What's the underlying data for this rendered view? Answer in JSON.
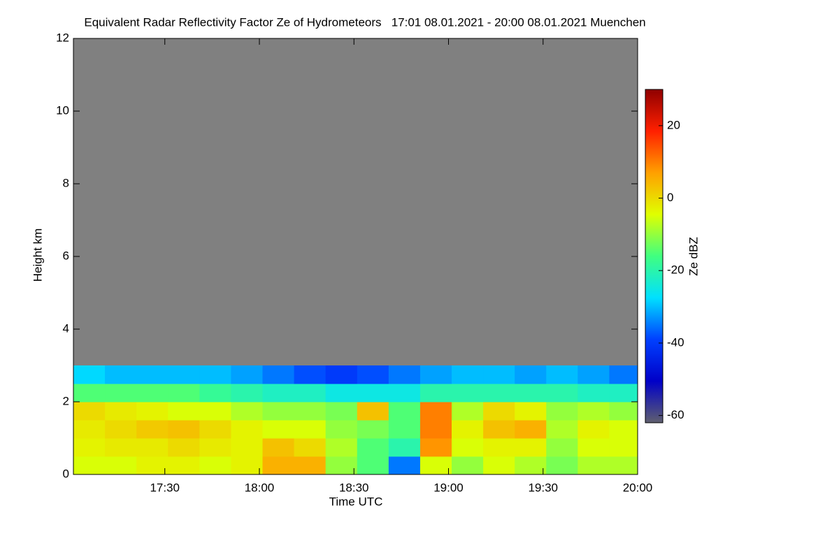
{
  "chart_data": {
    "type": "heatmap",
    "title": "Equivalent Radar Reflectivity Factor Ze of Hydrometeors   17:01 08.01.2021 - 20:00 08.01.2021 Muenchen",
    "xlabel": "Time UTC",
    "ylabel": "Height km",
    "colorbar_label": "Ze dBZ",
    "x": [
      1021,
      1031,
      1041,
      1051,
      1061,
      1071,
      1081,
      1091,
      1101,
      1111,
      1121,
      1131,
      1141,
      1151,
      1161,
      1171,
      1181,
      1191
    ],
    "y": [
      0,
      0.5,
      1,
      1.5,
      2,
      2.5
    ],
    "z": [
      [
        -5,
        -5,
        -3,
        -3,
        -5,
        -3,
        5,
        5,
        -10,
        -15,
        -35,
        -5,
        -10,
        -5,
        -8,
        -12,
        -8,
        -8
      ],
      [
        -3,
        -2,
        -2,
        0,
        -2,
        -3,
        3,
        0,
        -8,
        -15,
        -20,
        8,
        -5,
        -3,
        -3,
        -10,
        -5,
        -5
      ],
      [
        -2,
        0,
        2,
        3,
        0,
        -3,
        -5,
        -5,
        -10,
        -12,
        -15,
        10,
        -3,
        3,
        5,
        -8,
        -3,
        -5
      ],
      [
        0,
        -2,
        -3,
        -5,
        -5,
        -8,
        -10,
        -10,
        -12,
        3,
        -15,
        10,
        -8,
        0,
        -3,
        -10,
        -8,
        -10
      ],
      [
        -15,
        -15,
        -15,
        -15,
        -18,
        -20,
        -22,
        -22,
        -25,
        -25,
        -25,
        -20,
        -20,
        -20,
        -20,
        -20,
        -22,
        -22
      ],
      [
        -28,
        -30,
        -30,
        -30,
        -30,
        -32,
        -35,
        -38,
        -40,
        -38,
        -35,
        -32,
        -30,
        -30,
        -32,
        -30,
        -32,
        -35
      ]
    ],
    "xlim": [
      1021,
      1200
    ],
    "xticks": [
      {
        "value": 1050,
        "label": "17:30"
      },
      {
        "value": 1080,
        "label": "18:00"
      },
      {
        "value": 1110,
        "label": "18:30"
      },
      {
        "value": 1140,
        "label": "19:00"
      },
      {
        "value": 1170,
        "label": "19:30"
      },
      {
        "value": 1200,
        "label": "20:00"
      }
    ],
    "ylim": [
      0,
      12
    ],
    "yticks": [
      0,
      2,
      4,
      6,
      8,
      10,
      12
    ],
    "clim": [
      -62,
      30
    ],
    "cticks": [
      -60,
      -40,
      -20,
      0,
      20
    ],
    "colormap": [
      "#5f5f6f",
      "#0000c8",
      "#0040ff",
      "#00e0ff",
      "#40ff80",
      "#e0ff00",
      "#ffa000",
      "#ff2000",
      "#900000"
    ],
    "missing_color": "#808080"
  }
}
